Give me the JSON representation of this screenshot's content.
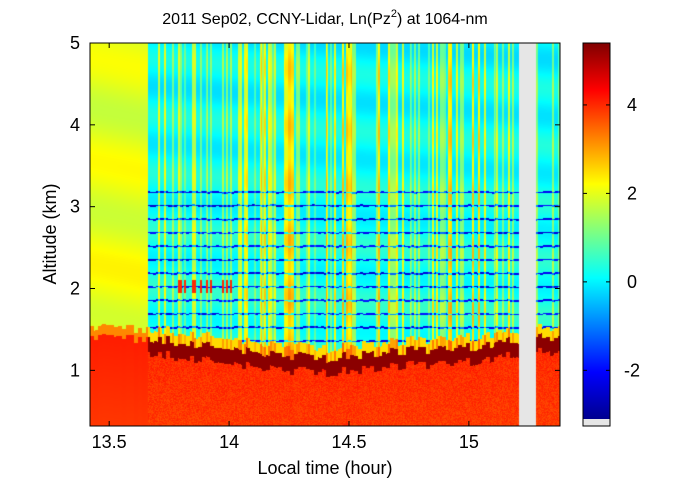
{
  "chart_data": {
    "type": "heatmap",
    "title": "2011 Sep02, CCNY-Lidar, Ln(Pz",
    "title_superscript": "2",
    "title_suffix": ") at 1064-nm",
    "xlabel": "Local time (hour)",
    "ylabel": "Altitude (km)",
    "xlim": [
      13.42,
      15.38
    ],
    "ylim": [
      0.32,
      5.0
    ],
    "xticks": [
      13.5,
      14,
      14.5,
      15
    ],
    "xtick_labels": [
      "13.5",
      "14",
      "14.5",
      "15"
    ],
    "yticks": [
      1,
      2,
      3,
      4,
      5
    ],
    "ytick_labels": [
      "1",
      "2",
      "3",
      "4",
      "5"
    ],
    "colorbar": {
      "colormap": "jet",
      "range": [
        -3.1,
        5.4
      ],
      "ticks": [
        -2,
        0,
        2,
        4
      ],
      "tick_labels": [
        "-2",
        "0",
        "2",
        "4"
      ],
      "missing_color": "#e6e6e6"
    },
    "missing_data_interval": [
      15.21,
      15.28
    ],
    "early_period_end": 13.66,
    "boundary_layer_top_km": {
      "x": [
        13.42,
        13.66,
        13.8,
        14.0,
        14.2,
        14.4,
        14.6,
        14.8,
        15.0,
        15.2,
        15.38
      ],
      "y": [
        1.38,
        1.4,
        1.35,
        1.28,
        1.18,
        1.15,
        1.2,
        1.25,
        1.28,
        1.38,
        1.42
      ]
    },
    "value_regions": [
      {
        "region": "surface layer below boundary",
        "value": 4.2
      },
      {
        "region": "boundary layer top edge",
        "value": 5.3
      },
      {
        "region": "free troposphere 13.66-15.38 h",
        "value": 0.3
      },
      {
        "region": "early period 13.42-13.66 h",
        "value": 2.3
      }
    ]
  }
}
